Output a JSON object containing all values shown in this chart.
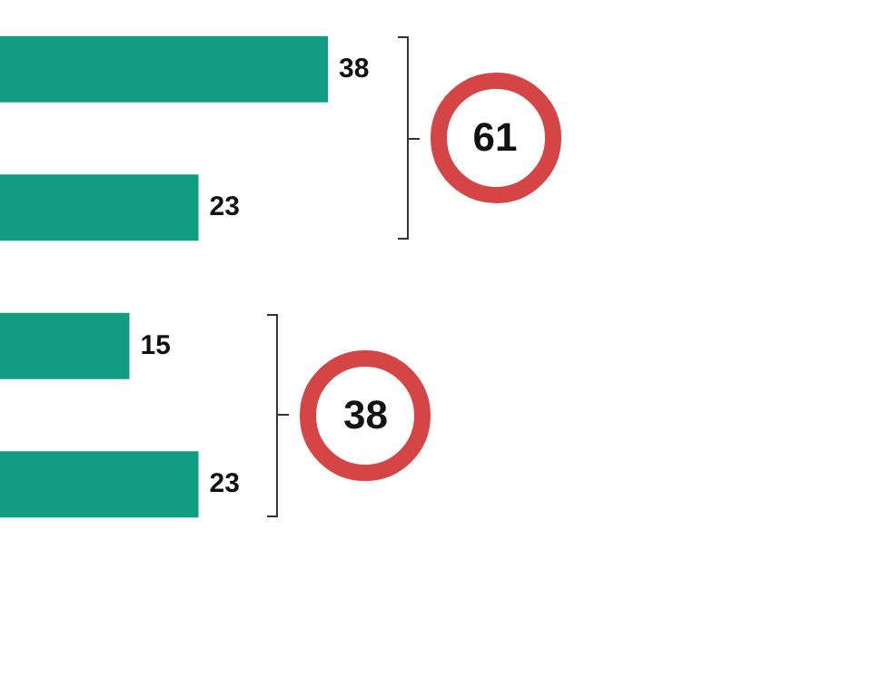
{
  "chart_data": {
    "type": "bar",
    "orientation": "horizontal",
    "categories": [
      null,
      null,
      null,
      null
    ],
    "values": [
      38,
      23,
      15,
      23
    ],
    "color": "#109c80",
    "data_labels": true,
    "legend": false,
    "tick_labels": false,
    "annotations": [
      "61",
      "38"
    ]
  }
}
